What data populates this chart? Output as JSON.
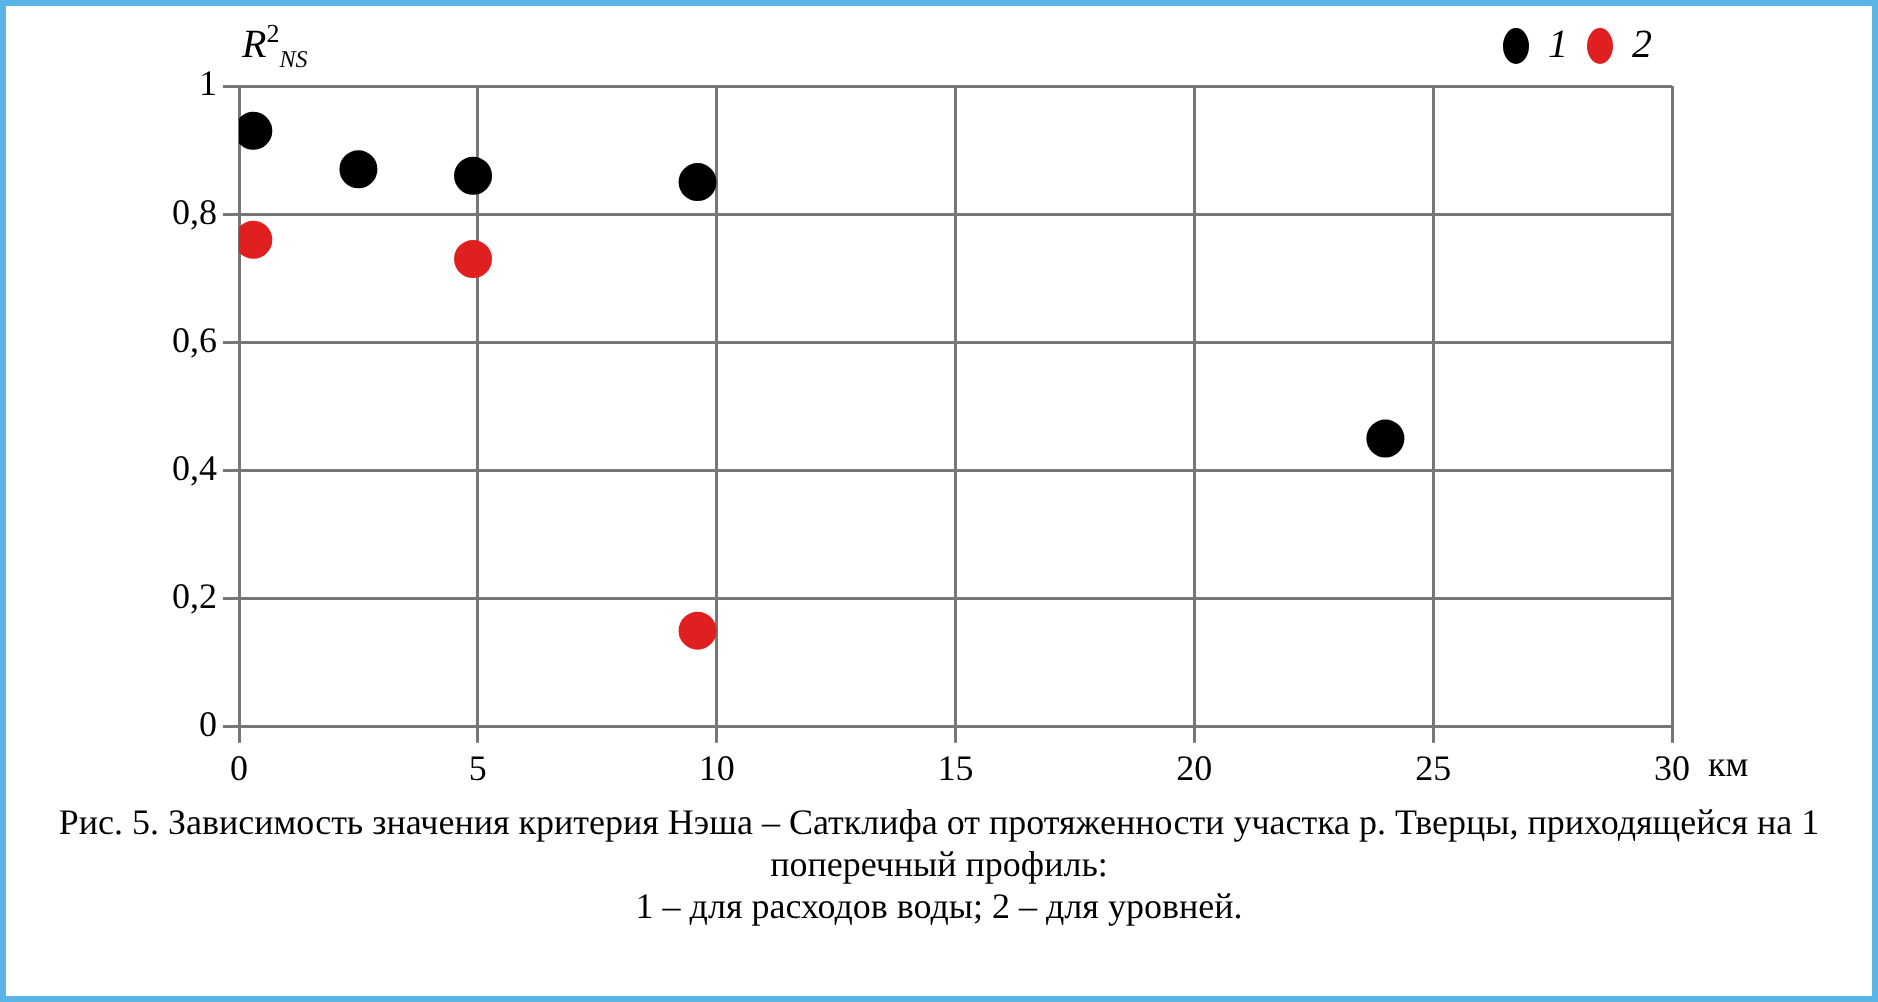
{
  "chart_data": {
    "type": "scatter",
    "title": "Рис. 5. Зависимость значения критерия Нэша – Сатклифа от протяженности участка р. Тверцы, приходящейся на 1 поперечный профиль:",
    "annotations": [
      "1 – для расходов воды; 2 – для уровней."
    ],
    "xlabel": "км",
    "ylabel": "R$^{2}$$_{NS}$",
    "series": [
      {
        "name": "1",
        "color": "#000000",
        "x": [
          0.3,
          2.5,
          4.9,
          9.6,
          24
        ],
        "values": [
          0.93,
          0.87,
          0.86,
          0.85,
          0.45
        ]
      },
      {
        "name": "2",
        "color": "#e02020",
        "x": [
          0.3,
          4.9,
          9.6
        ],
        "values": [
          0.76,
          0.73,
          0.15
        ]
      }
    ],
    "xlim": [
      0,
      30
    ],
    "xticks": [
      0,
      5,
      10,
      15,
      20,
      25,
      30
    ],
    "ylim": [
      0,
      1
    ],
    "yticks": [
      0,
      {
        "value": 0.2,
        "label": "0,2"
      },
      {
        "value": 0.4,
        "label": "0,4"
      },
      {
        "value": 0.6,
        "label": "0,6"
      },
      {
        "value": 0.8,
        "label": "0,8"
      },
      1
    ],
    "grid": true,
    "legend": "top right",
    "marker": "circle"
  }
}
